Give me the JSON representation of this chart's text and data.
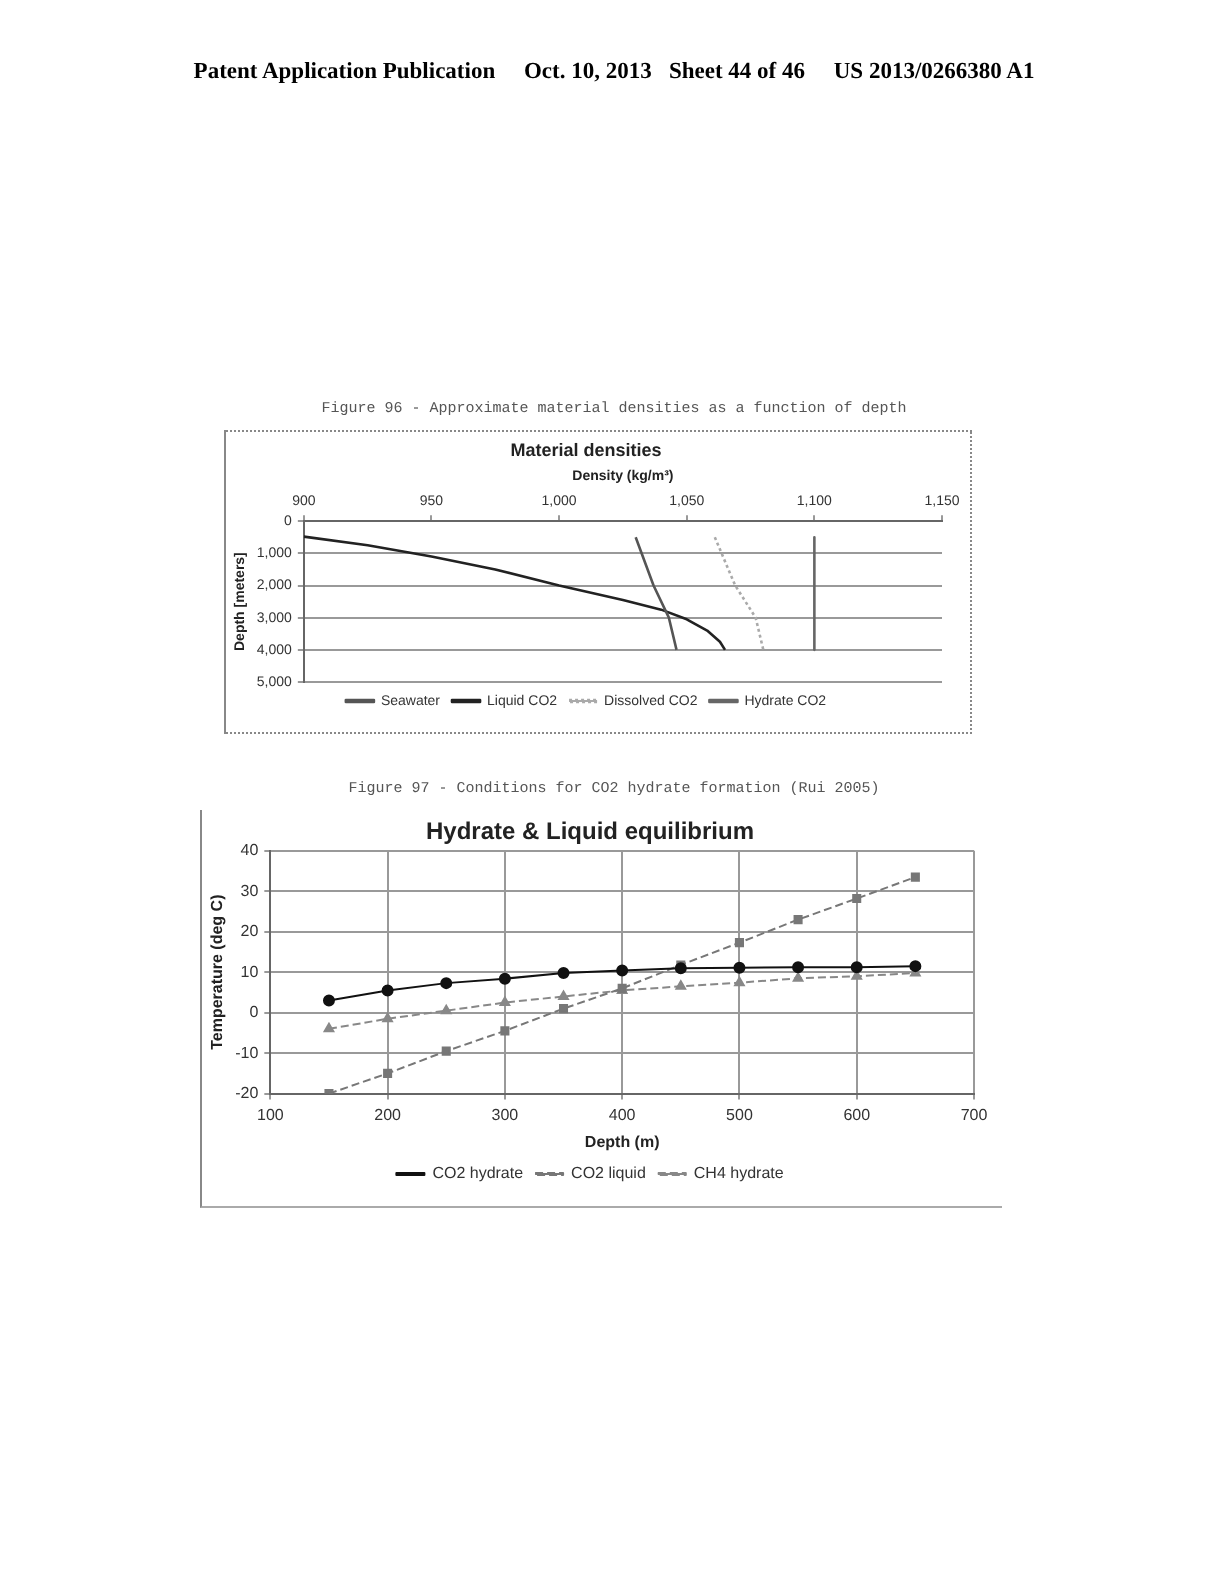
{
  "chart_data": [
    {
      "type": "line",
      "title": "Material densities",
      "xlabel": "Density (kg/m³)",
      "ylabel": "Depth [meters]",
      "annotations": [
        "Patent Application Publication     Oct. 10, 2013   Sheet 44 of 46     US 2013/0266380 A1",
        "Figure 96 - Approximate material densities as a function of depth"
      ],
      "xlim": [
        900,
        1150
      ],
      "xticks": [
        900,
        950,
        {
          "value": 1000,
          "label": "1,000"
        },
        {
          "value": 1050,
          "label": "1,050"
        },
        {
          "value": 1100,
          "label": "1,100"
        },
        {
          "value": 1150,
          "label": "1,150"
        }
      ],
      "ylim": [
        5000,
        0
      ],
      "yticks": [
        0,
        {
          "value": 1000,
          "label": "1,000"
        },
        {
          "value": 2000,
          "label": "2,000"
        },
        {
          "value": 3000,
          "label": "3,000"
        },
        {
          "value": 4000,
          "label": "4,000"
        },
        {
          "value": 5000,
          "label": "5,000"
        }
      ],
      "grid": "y",
      "legend": "bottom",
      "series": [
        {
          "name": "Seawater",
          "color": "#555555",
          "x": [
            1030,
            1037,
            1043,
            1046
          ],
          "values": [
            500,
            2000,
            3000,
            4000
          ]
        },
        {
          "name": "Liquid CO2",
          "color": "#222222",
          "x": [
            900,
            925,
            950,
            975,
            1000,
            1025,
            1040,
            1050,
            1058,
            1063,
            1065
          ],
          "values": [
            480,
            750,
            1100,
            1500,
            2000,
            2450,
            2750,
            3050,
            3400,
            3750,
            4000
          ]
        },
        {
          "name": "Dissolved CO2",
          "color": "#aaaaaa",
          "line_style": "dotted",
          "x": [
            1061,
            1069,
            1077,
            1080
          ],
          "values": [
            500,
            2000,
            3000,
            4000
          ]
        },
        {
          "name": "Hydrate CO2",
          "color": "#666666",
          "x": [
            1100,
            1100
          ],
          "values": [
            500,
            4000
          ]
        }
      ]
    },
    {
      "type": "line",
      "title": "Hydrate & Liquid equilibrium",
      "xlabel": "Depth (m)",
      "ylabel": "Temperature (deg C)",
      "annotations": [
        "Figure 97 - Conditions for CO2 hydrate formation (Rui 2005)"
      ],
      "xlim": [
        100,
        700
      ],
      "xticks": [
        100,
        200,
        300,
        400,
        500,
        600,
        700
      ],
      "ylim": [
        -20,
        40
      ],
      "yticks": [
        -20,
        -10,
        0,
        10,
        20,
        30,
        40
      ],
      "grid": true,
      "legend": "bottom",
      "series": [
        {
          "name": "CO2 hydrate",
          "color": "#111111",
          "marker": "circle",
          "x": [
            150,
            200,
            250,
            300,
            350,
            400,
            450,
            500,
            550,
            600,
            650
          ],
          "values": [
            3,
            5.5,
            7.3,
            8.4,
            9.8,
            10.4,
            11,
            11.1,
            11.2,
            11.2,
            11.5
          ]
        },
        {
          "name": "CO2 liquid",
          "color": "#777777",
          "marker": "square",
          "line_style": "dashed",
          "x": [
            150,
            200,
            250,
            300,
            350,
            400,
            450,
            500,
            550,
            600,
            650
          ],
          "values": [
            -20,
            -15,
            -9.5,
            -4.5,
            1,
            6,
            11.8,
            17.3,
            23,
            28.2,
            33.5
          ]
        },
        {
          "name": "CH4 hydrate",
          "color": "#888888",
          "marker": "triangle",
          "line_style": "dashed",
          "x": [
            150,
            200,
            250,
            300,
            350,
            400,
            450,
            500,
            550,
            600,
            650
          ],
          "values": [
            -4,
            -1.5,
            0.5,
            2.5,
            4,
            5.5,
            6.5,
            7.4,
            8.5,
            9,
            9.8
          ]
        }
      ]
    }
  ]
}
